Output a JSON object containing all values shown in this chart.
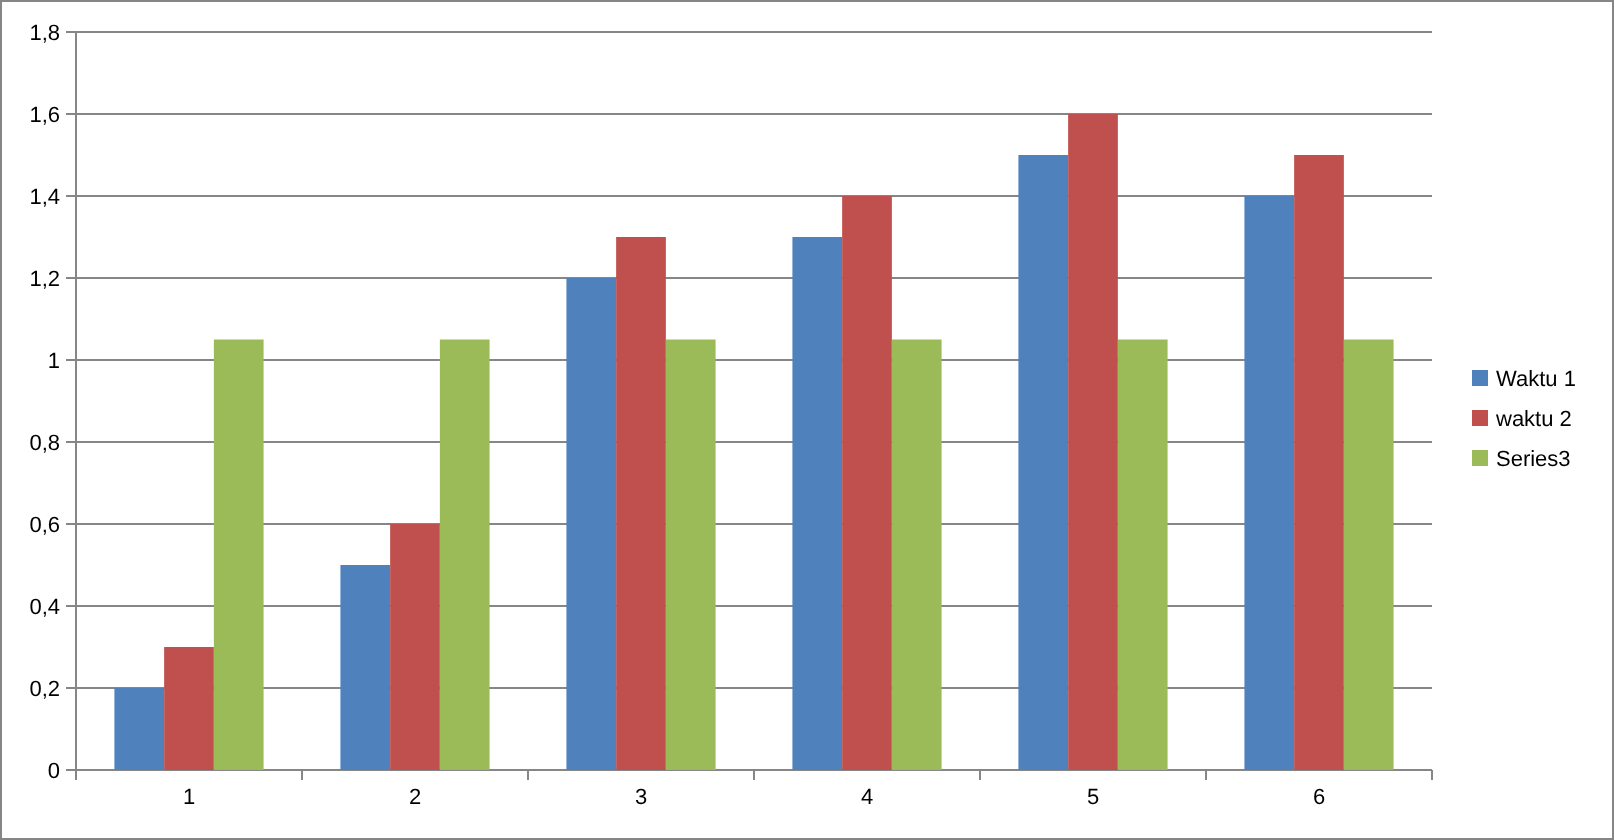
{
  "chart_data": {
    "type": "bar",
    "categories": [
      "1",
      "2",
      "3",
      "4",
      "5",
      "6"
    ],
    "series": [
      {
        "name": "Waktu 1",
        "color": "#4f81bd",
        "values": [
          0.2,
          0.5,
          1.2,
          1.3,
          1.5,
          1.4
        ]
      },
      {
        "name": "waktu 2",
        "color": "#c0504d",
        "values": [
          0.3,
          0.6,
          1.3,
          1.4,
          1.6,
          1.5
        ]
      },
      {
        "name": "Series3",
        "color": "#9bbb59",
        "values": [
          1.05,
          1.05,
          1.05,
          1.05,
          1.05,
          1.05
        ]
      }
    ],
    "ylim": [
      0,
      1.8
    ],
    "yticks": [
      {
        "value": 0,
        "label": "0"
      },
      {
        "value": 0.2,
        "label": "0,2"
      },
      {
        "value": 0.4,
        "label": "0,4"
      },
      {
        "value": 0.6,
        "label": "0,6"
      },
      {
        "value": 0.8,
        "label": "0,8"
      },
      {
        "value": 1,
        "label": "1"
      },
      {
        "value": 1.2,
        "label": "1,2"
      },
      {
        "value": 1.4,
        "label": "1,4"
      },
      {
        "value": 1.6,
        "label": "1,6"
      },
      {
        "value": 1.8,
        "label": "1,8"
      }
    ],
    "grid": "y",
    "legend": "right"
  }
}
